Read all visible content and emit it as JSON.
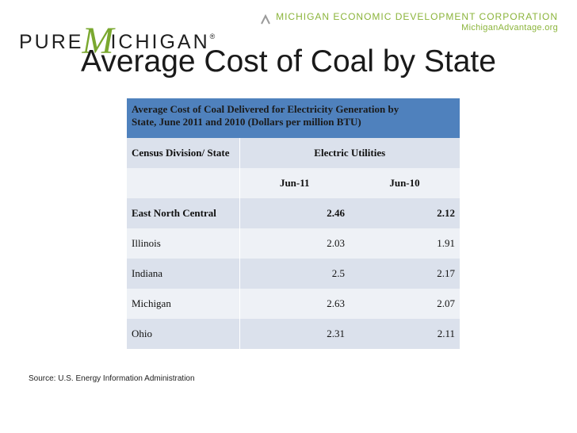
{
  "header": {
    "logo_left": {
      "pre": "PURE",
      "m": "M",
      "post": "ICHIGAN",
      "reg": "®"
    },
    "org_name": "MICHIGAN ECONOMIC DEVELOPMENT CORPORATION",
    "org_site": "MichiganAdvantage.org",
    "brand_color": "#7aa82f"
  },
  "slide": {
    "title": "Average Cost of Coal by State"
  },
  "table": {
    "caption_line1": "Average Cost of Coal Delivered for Electricity Generation by",
    "caption_line2": "State, June 2011 and 2010 (Dollars per million BTU)",
    "col_division": "Census Division/ State",
    "col_group": "Electric Utilities",
    "col_jun11": "Jun-11",
    "col_jun10": "Jun-10",
    "rows": [
      {
        "state": "East North Central",
        "jun11": "2.46",
        "jun10": "2.12"
      },
      {
        "state": "Illinois",
        "jun11": "2.03",
        "jun10": "1.91"
      },
      {
        "state": "Indiana",
        "jun11": "2.5",
        "jun10": "2.17"
      },
      {
        "state": "Michigan",
        "jun11": "2.63",
        "jun10": "2.07"
      },
      {
        "state": "Ohio",
        "jun11": "2.31",
        "jun10": "2.11"
      }
    ],
    "header_color": "#4f81bd"
  },
  "footer": {
    "source": "Source: U.S. Energy Information Administration"
  }
}
